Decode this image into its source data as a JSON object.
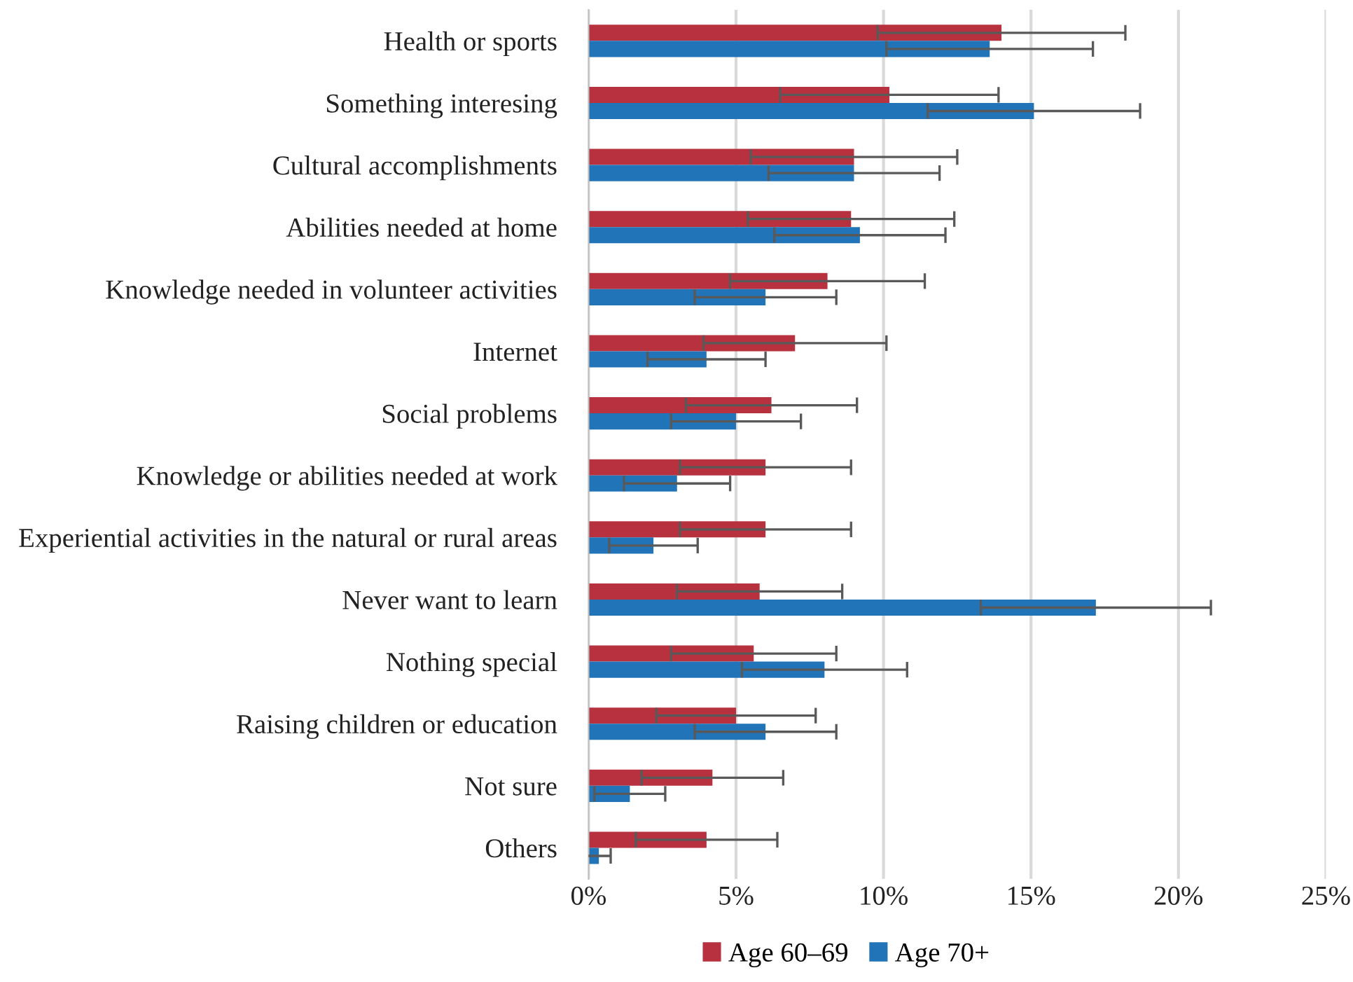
{
  "chart_data": {
    "type": "bar",
    "orientation": "horizontal",
    "categories": [
      "Health or sports",
      "Something interesing",
      "Cultural accomplishments",
      "Abilities needed at home",
      "Knowledge needed in volunteer activities",
      "Internet",
      "Social problems",
      "Knowledge or abilities needed at work",
      "Experiential activities in the natural or rural areas",
      "Never want to learn",
      "Nothing special",
      "Raising children or education",
      "Not sure",
      "Others"
    ],
    "series": [
      {
        "name": "Age 60–69",
        "color": "#b8313f",
        "values": [
          14.0,
          10.2,
          9.0,
          8.9,
          8.1,
          7.0,
          6.2,
          6.0,
          6.0,
          5.8,
          5.6,
          5.0,
          4.2,
          4.0
        ],
        "errors": [
          4.2,
          3.7,
          3.5,
          3.5,
          3.3,
          3.1,
          2.9,
          2.9,
          2.9,
          2.8,
          2.8,
          2.7,
          2.4,
          2.4
        ]
      },
      {
        "name": "Age 70+",
        "color": "#2274b9",
        "values": [
          13.6,
          15.1,
          9.0,
          9.2,
          6.0,
          4.0,
          5.0,
          3.0,
          2.2,
          17.2,
          8.0,
          6.0,
          1.4,
          0.35
        ],
        "errors": [
          3.5,
          3.6,
          2.9,
          2.9,
          2.4,
          2.0,
          2.2,
          1.8,
          1.5,
          3.9,
          2.8,
          2.4,
          1.2,
          0.4
        ]
      }
    ],
    "xlim": [
      0,
      25
    ],
    "xticks": [
      {
        "value": 0,
        "label": "0%"
      },
      {
        "value": 5,
        "label": "5%"
      },
      {
        "value": 10,
        "label": "10%"
      },
      {
        "value": 15,
        "label": "15%"
      },
      {
        "value": 20,
        "label": "20%"
      },
      {
        "value": 25,
        "label": "25%"
      }
    ],
    "grid": "x",
    "legend": "bottom"
  }
}
